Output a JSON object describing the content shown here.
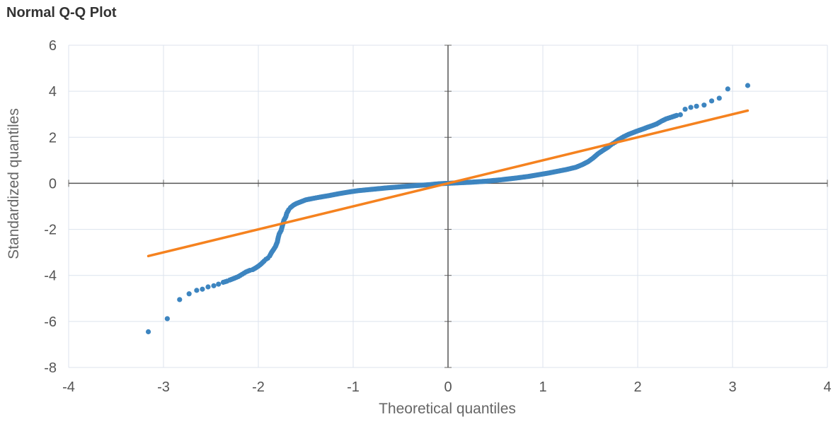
{
  "chart_data": {
    "type": "scatter",
    "title": "Normal Q-Q Plot",
    "xlabel": "Theoretical quantiles",
    "ylabel": "Standardized quantiles",
    "xlim": [
      -4,
      4
    ],
    "ylim": [
      -8,
      6
    ],
    "x_ticks": [
      "-4",
      "-3",
      "-2",
      "-1",
      "0",
      "1",
      "2",
      "3",
      "4"
    ],
    "y_ticks": [
      "6",
      "4",
      "2",
      "0",
      "-2",
      "-4",
      "-6",
      "-8"
    ],
    "grid": true,
    "series": [
      {
        "type": "scatter",
        "color": "#3d85c0",
        "points": [
          [
            -3.16,
            -6.45
          ],
          [
            -2.96,
            -5.88
          ],
          [
            -2.83,
            -5.05
          ],
          [
            -2.73,
            -4.8
          ],
          [
            -2.65,
            -4.65
          ],
          [
            -2.59,
            -4.6
          ],
          [
            -2.53,
            -4.5
          ],
          [
            -2.47,
            -4.45
          ],
          [
            -2.42,
            -4.38
          ],
          [
            -2.37,
            -4.3
          ],
          [
            -2.33,
            -4.25
          ],
          [
            -2.3,
            -4.2
          ],
          [
            -2.25,
            -4.12
          ],
          [
            -2.21,
            -4.05
          ],
          [
            -2.17,
            -3.95
          ],
          [
            -2.13,
            -3.85
          ],
          [
            -2.09,
            -3.78
          ],
          [
            -2.06,
            -3.75
          ],
          [
            -2.03,
            -3.68
          ],
          [
            -2.0,
            -3.6
          ],
          [
            -1.97,
            -3.5
          ],
          [
            -1.94,
            -3.38
          ],
          [
            -1.92,
            -3.3
          ],
          [
            -1.9,
            -3.25
          ],
          [
            -1.88,
            -3.15
          ],
          [
            -1.86,
            -3.0
          ],
          [
            -1.84,
            -2.88
          ],
          [
            -1.82,
            -2.75
          ],
          [
            -1.8,
            -2.55
          ],
          [
            -1.79,
            -2.35
          ],
          [
            -1.78,
            -2.2
          ],
          [
            -1.76,
            -2.05
          ],
          [
            -1.75,
            -1.9
          ],
          [
            -1.74,
            -1.75
          ],
          [
            -1.73,
            -1.6
          ],
          [
            -1.71,
            -1.45
          ],
          [
            -1.7,
            -1.3
          ],
          [
            -1.68,
            -1.15
          ],
          [
            -1.66,
            -1.05
          ],
          [
            -1.63,
            -0.95
          ],
          [
            -1.6,
            -0.88
          ],
          [
            -1.55,
            -0.8
          ],
          [
            -1.5,
            -0.72
          ],
          [
            -1.43,
            -0.66
          ],
          [
            -1.35,
            -0.6
          ],
          [
            -1.25,
            -0.53
          ],
          [
            -1.15,
            -0.45
          ],
          [
            -1.05,
            -0.38
          ],
          [
            -0.95,
            -0.32
          ],
          [
            -0.8,
            -0.26
          ],
          [
            -0.65,
            -0.2
          ],
          [
            -0.5,
            -0.15
          ],
          [
            -0.35,
            -0.1
          ],
          [
            -0.2,
            -0.06
          ],
          [
            -0.1,
            -0.02
          ],
          [
            0.0,
            0.0
          ],
          [
            0.1,
            0.02
          ],
          [
            0.25,
            0.05
          ],
          [
            0.4,
            0.09
          ],
          [
            0.55,
            0.15
          ],
          [
            0.7,
            0.22
          ],
          [
            0.85,
            0.3
          ],
          [
            0.95,
            0.37
          ],
          [
            1.05,
            0.44
          ],
          [
            1.15,
            0.52
          ],
          [
            1.25,
            0.6
          ],
          [
            1.35,
            0.7
          ],
          [
            1.42,
            0.82
          ],
          [
            1.48,
            0.95
          ],
          [
            1.53,
            1.1
          ],
          [
            1.58,
            1.28
          ],
          [
            1.63,
            1.42
          ],
          [
            1.68,
            1.55
          ],
          [
            1.72,
            1.68
          ],
          [
            1.76,
            1.78
          ],
          [
            1.8,
            1.9
          ],
          [
            1.85,
            2.02
          ],
          [
            1.9,
            2.12
          ],
          [
            1.95,
            2.2
          ],
          [
            2.0,
            2.28
          ],
          [
            2.05,
            2.35
          ],
          [
            2.1,
            2.43
          ],
          [
            2.15,
            2.5
          ],
          [
            2.2,
            2.58
          ],
          [
            2.25,
            2.7
          ],
          [
            2.3,
            2.8
          ],
          [
            2.36,
            2.88
          ],
          [
            2.41,
            2.95
          ],
          [
            2.45,
            2.98
          ],
          [
            2.5,
            3.22
          ],
          [
            2.56,
            3.3
          ],
          [
            2.62,
            3.35
          ],
          [
            2.7,
            3.4
          ],
          [
            2.78,
            3.58
          ],
          [
            2.86,
            3.7
          ],
          [
            2.95,
            4.1
          ],
          [
            3.16,
            4.25
          ]
        ]
      },
      {
        "type": "line",
        "color": "#f5821f",
        "points": [
          [
            -3.16,
            -3.16
          ],
          [
            3.16,
            3.16
          ]
        ]
      }
    ]
  }
}
